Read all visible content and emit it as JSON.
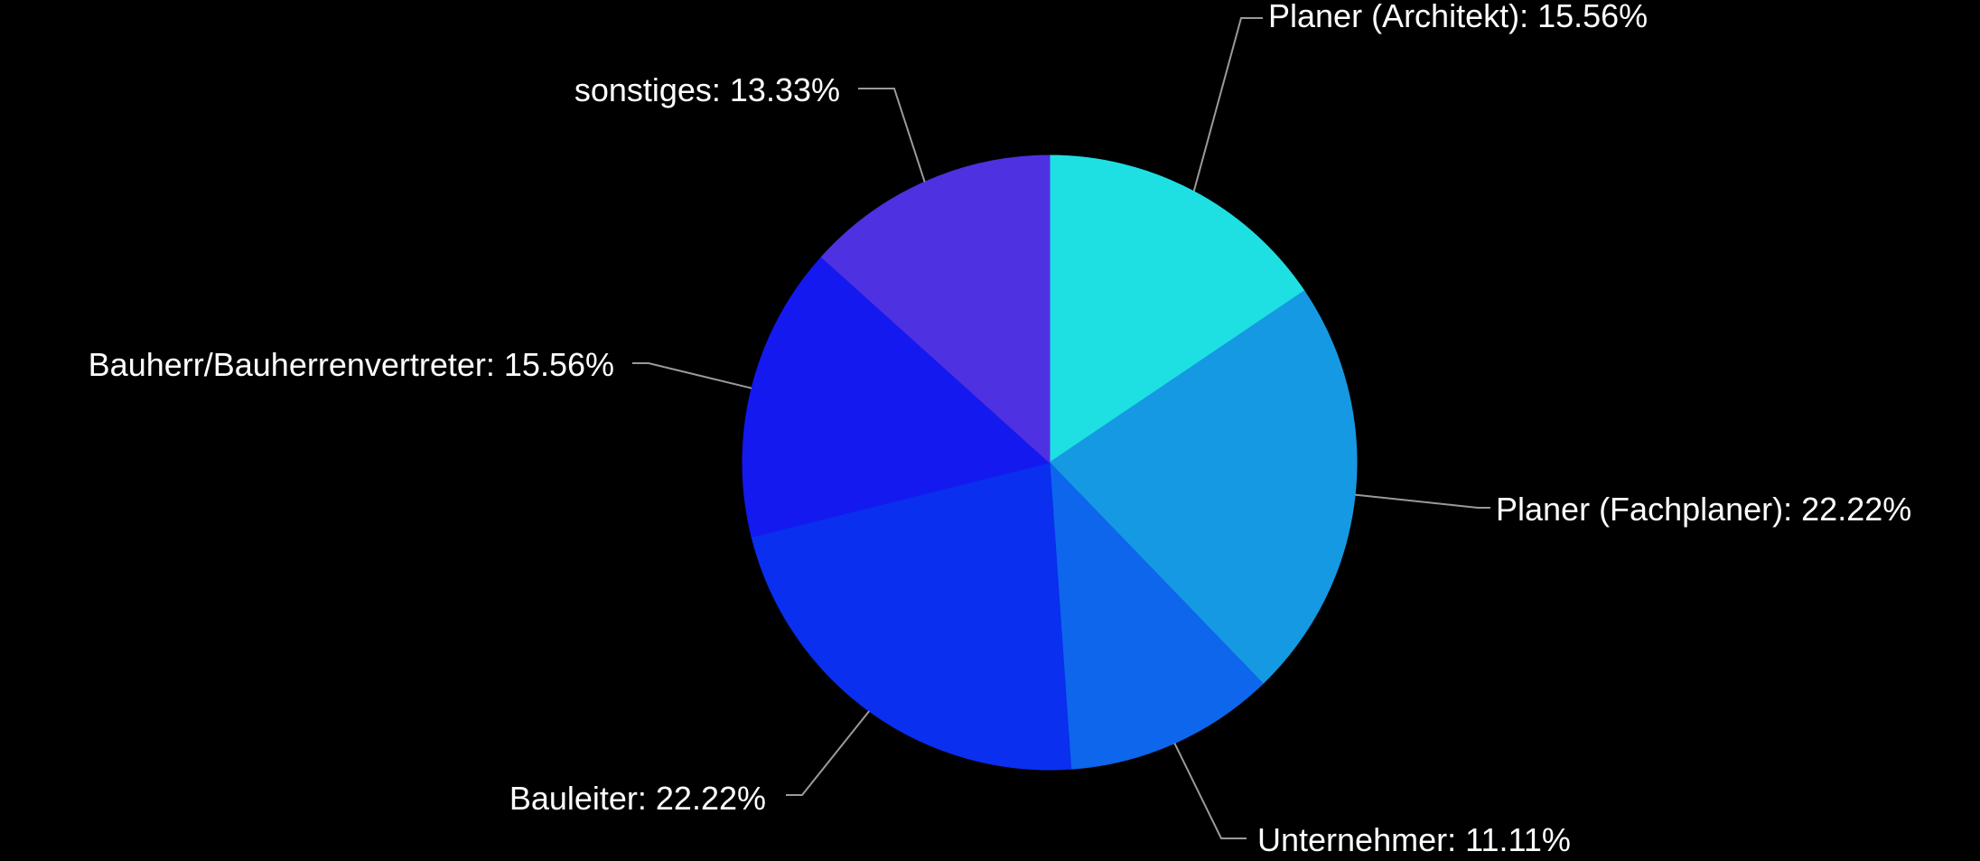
{
  "chart_data": {
    "type": "pie",
    "start_angle_deg": 0,
    "direction": "clockwise",
    "label_format": "{name}: {percent}",
    "slices": [
      {
        "name": "Planer (Architekt)",
        "value": 15.56,
        "label": "15.56%",
        "color": "#1ee0e2"
      },
      {
        "name": "Planer (Fachplaner)",
        "value": 22.22,
        "label": "22.22%",
        "color": "#1699e3"
      },
      {
        "name": "Unternehmer",
        "value": 11.11,
        "label": "11.11%",
        "color": "#0d66eb"
      },
      {
        "name": "Bauleiter",
        "value": 22.22,
        "label": "22.22%",
        "color": "#0a2fef"
      },
      {
        "name": "Bauherr/Bauherrenvertreter",
        "value": 15.56,
        "label": "15.56%",
        "color": "#1419f0"
      },
      {
        "name": "sonstiges",
        "value": 13.33,
        "label": "13.33%",
        "color": "#4e31e0"
      }
    ]
  }
}
